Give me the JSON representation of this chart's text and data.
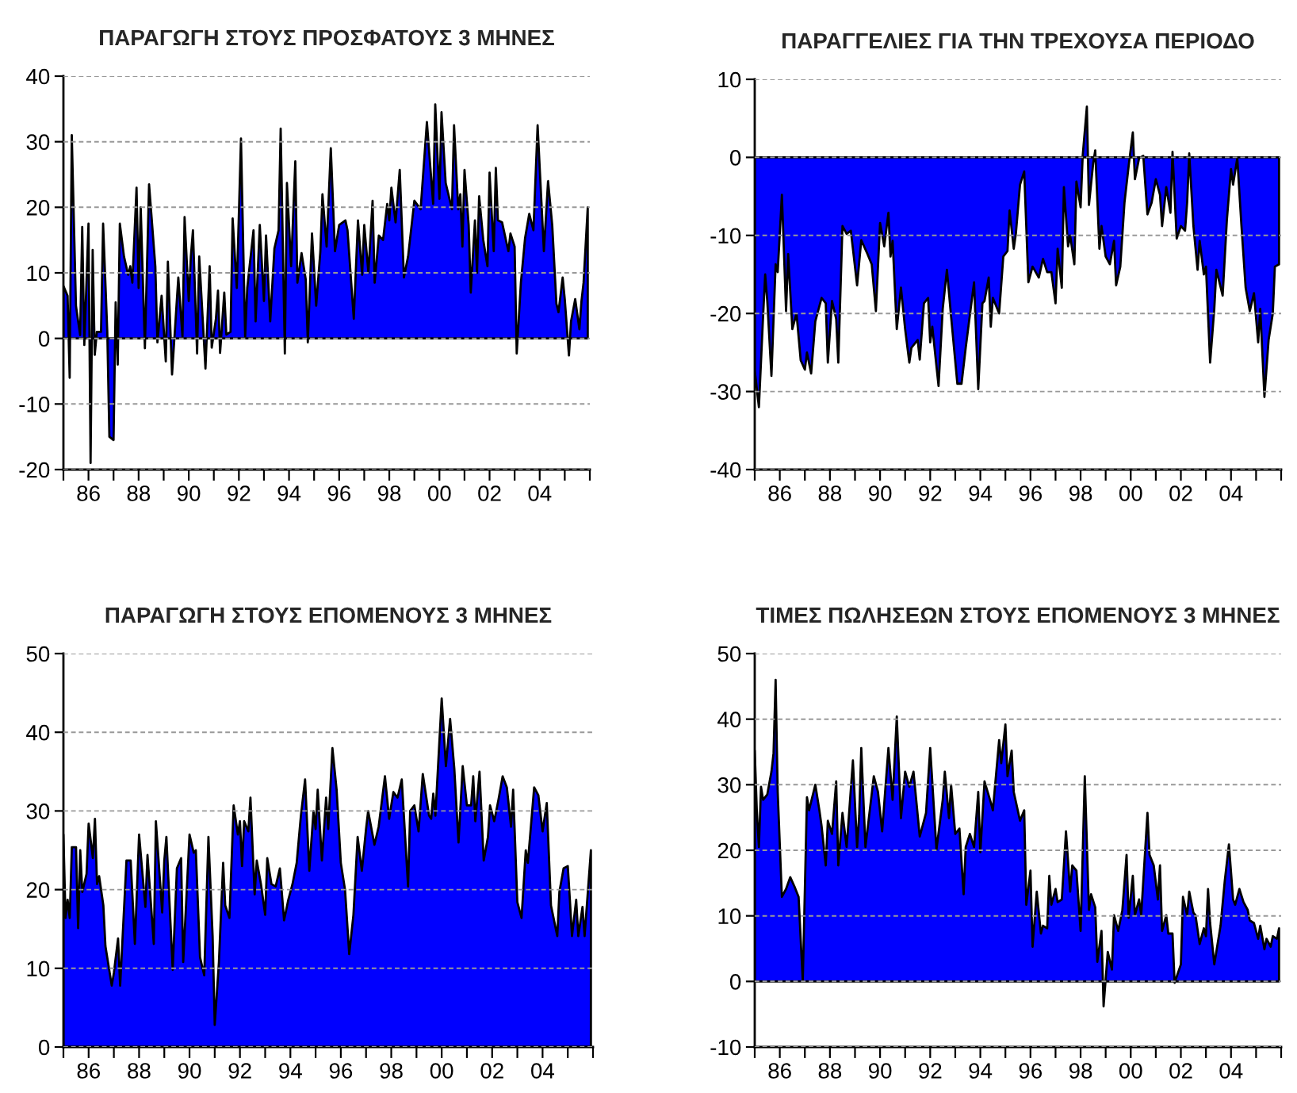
{
  "chart_data": [
    {
      "type": "area",
      "title": "ΠΑΡΑΓΩΓΗ ΣΤΟΥΣ ΠΡΟΣΦΑΤΟΥΣ 3 ΜΗΝΕΣ",
      "grid": "y",
      "xlim": [
        "1985",
        "2006"
      ],
      "xticks": [
        {
          "value": "1985",
          "label": null
        },
        {
          "value": "1986",
          "label": "86"
        },
        {
          "value": "1987",
          "label": null
        },
        {
          "value": "1988",
          "label": "88"
        },
        {
          "value": "1989",
          "label": null
        },
        {
          "value": "1990",
          "label": "90"
        },
        {
          "value": "1991",
          "label": null
        },
        {
          "value": "1992",
          "label": "92"
        },
        {
          "value": "1993",
          "label": null
        },
        {
          "value": "1994",
          "label": "94"
        },
        {
          "value": "1995",
          "label": null
        },
        {
          "value": "1996",
          "label": "96"
        },
        {
          "value": "1997",
          "label": null
        },
        {
          "value": "1998",
          "label": "98"
        },
        {
          "value": "1999",
          "label": null
        },
        {
          "value": "2000",
          "label": "00"
        },
        {
          "value": "2001",
          "label": null
        },
        {
          "value": "2002",
          "label": "02"
        },
        {
          "value": "2003",
          "label": null
        },
        {
          "value": "2004",
          "label": "04"
        },
        {
          "value": "2005",
          "label": null
        },
        {
          "value": "2006",
          "label": null
        }
      ],
      "ylim": [
        -20,
        40
      ],
      "yticks": [
        -20,
        -10,
        0,
        10,
        20,
        30,
        40
      ],
      "x": [
        "1985-01",
        "1985-03",
        "1985-04",
        "1985-05",
        "1985-07",
        "1985-09",
        "1985-10",
        "1985-11",
        "1986-01",
        "1986-02",
        "1986-03",
        "1986-04",
        "1986-05",
        "1986-07",
        "1986-08",
        "1986-10",
        "1986-11",
        "1987-01",
        "1987-02",
        "1987-03",
        "1987-04",
        "1987-06",
        "1987-08",
        "1987-09",
        "1987-10",
        "1987-12",
        "1988-01",
        "1988-02",
        "1988-04",
        "1988-06",
        "1988-09",
        "1988-10",
        "1988-12",
        "1989-02",
        "1989-03",
        "1989-05",
        "1989-08",
        "1989-10",
        "1989-11",
        "1990-01",
        "1990-02",
        "1990-03",
        "1990-05",
        "1990-06",
        "1990-09",
        "1990-11",
        "1990-12",
        "1991-02",
        "1991-03",
        "1991-04",
        "1991-06",
        "1991-07",
        "1991-09",
        "1991-10",
        "1991-12",
        "1992-02",
        "1992-04",
        "1992-05",
        "1992-08",
        "1992-09",
        "1992-11",
        "1993-01",
        "1993-02",
        "1993-04",
        "1993-06",
        "1993-08",
        "1993-09",
        "1993-11",
        "1993-12",
        "1994-02",
        "1994-04",
        "1994-05",
        "1994-07",
        "1994-09",
        "1994-10",
        "1994-12",
        "1995-02",
        "1995-04",
        "1995-05",
        "1995-07",
        "1995-09",
        "1995-11",
        "1996-01",
        "1996-04",
        "1996-05",
        "1996-08",
        "1996-10",
        "1996-12",
        "1997-01",
        "1997-03",
        "1997-05",
        "1997-06",
        "1997-08",
        "1997-10",
        "1997-12",
        "1998-01",
        "1998-02",
        "1998-04",
        "1998-06",
        "1998-08",
        "1998-10",
        "1999-01",
        "1999-04",
        "1999-07",
        "1999-10",
        "1999-11",
        "2000-01",
        "2000-02",
        "2000-04",
        "2000-07",
        "2000-08",
        "2000-10",
        "2000-11",
        "2000-12",
        "2001-01",
        "2001-03",
        "2001-04",
        "2001-06",
        "2001-07",
        "2001-08",
        "2001-10",
        "2001-12",
        "2002-01",
        "2002-03",
        "2002-04",
        "2002-05",
        "2002-07",
        "2002-10",
        "2002-11",
        "2003-01",
        "2003-02",
        "2003-04",
        "2003-06",
        "2003-08",
        "2003-10",
        "2003-12",
        "2004-03",
        "2004-05",
        "2004-07",
        "2004-09",
        "2004-10",
        "2004-12",
        "2005-01",
        "2005-03",
        "2005-04",
        "2005-06",
        "2005-08",
        "2005-09",
        "2005-10",
        "2005-12"
      ],
      "series": [
        {
          "color": "#0000ff",
          "values": [
            8,
            6.5,
            -6,
            31,
            5,
            0.5,
            17,
            -1,
            17.5,
            -19,
            13.5,
            -2.5,
            1,
            1,
            17.5,
            1,
            -15,
            -15.5,
            5.5,
            -4,
            17.5,
            12.5,
            9.7,
            11,
            8.5,
            23,
            7.7,
            20,
            -1.5,
            23.5,
            11,
            -0.6,
            6.5,
            -3.5,
            11.7,
            -5.5,
            9.3,
            0.2,
            18.5,
            5.7,
            12.5,
            16.5,
            -2.3,
            12.5,
            -4.6,
            11,
            -1.4,
            3,
            7.3,
            -2.2,
            7,
            0.6,
            1,
            18.3,
            7.7,
            30.5,
            0.2,
            7.7,
            16.5,
            2.6,
            17.3,
            5.7,
            15.7,
            2.6,
            13.7,
            16.5,
            32,
            -2.3,
            23.7,
            11,
            27,
            8.5,
            13,
            9,
            -0.6,
            16,
            5,
            13.3,
            22,
            14,
            29,
            13.3,
            17.3,
            18,
            16.5,
            3,
            18,
            9.7,
            17.3,
            10,
            21,
            8.5,
            15.7,
            15,
            20.5,
            18,
            23,
            17.7,
            25.7,
            9.3,
            12.5,
            21,
            19.7,
            33,
            20.5,
            35.7,
            21.3,
            34.5,
            23.7,
            19.7,
            32.5,
            19.7,
            22,
            14,
            25.7,
            17.3,
            7,
            18,
            10,
            21.7,
            15,
            11,
            25.3,
            13.3,
            26,
            18,
            17.7,
            13.3,
            16,
            14,
            -2.3,
            8.5,
            15.3,
            19,
            16.5,
            32.5,
            13.3,
            24,
            17.3,
            5.3,
            4,
            9.3,
            6,
            -2.6,
            2.6,
            6,
            1.4,
            5.7,
            8.5,
            20
          ]
        }
      ]
    },
    {
      "type": "area",
      "title": "ΠΑΡΑΓΓΕΛΙΕΣ ΓΙΑ ΤΗΝ ΤΡΕΧΟΥΣΑ ΠΕΡΙΟΔΟ",
      "grid": "y",
      "xlim": [
        "1985",
        "2006"
      ],
      "xticks": [
        {
          "value": "1985",
          "label": null
        },
        {
          "value": "1986",
          "label": "86"
        },
        {
          "value": "1987",
          "label": null
        },
        {
          "value": "1988",
          "label": "88"
        },
        {
          "value": "1989",
          "label": null
        },
        {
          "value": "1990",
          "label": "90"
        },
        {
          "value": "1991",
          "label": null
        },
        {
          "value": "1992",
          "label": "92"
        },
        {
          "value": "1993",
          "label": null
        },
        {
          "value": "1994",
          "label": "94"
        },
        {
          "value": "1995",
          "label": null
        },
        {
          "value": "1996",
          "label": "96"
        },
        {
          "value": "1997",
          "label": null
        },
        {
          "value": "1998",
          "label": "98"
        },
        {
          "value": "1999",
          "label": null
        },
        {
          "value": "2000",
          "label": "00"
        },
        {
          "value": "2001",
          "label": null
        },
        {
          "value": "2002",
          "label": "02"
        },
        {
          "value": "2003",
          "label": null
        },
        {
          "value": "2004",
          "label": "04"
        },
        {
          "value": "2005",
          "label": null
        },
        {
          "value": "2006",
          "label": null
        }
      ],
      "ylim": [
        -40,
        10
      ],
      "yticks": [
        -40,
        -30,
        -20,
        -10,
        0,
        10
      ],
      "x": [
        "1985-01",
        "1985-03",
        "1985-05",
        "1985-06",
        "1985-07",
        "1985-09",
        "1985-11",
        "1985-12",
        "1986-02",
        "1986-04",
        "1986-05",
        "1986-07",
        "1986-09",
        "1986-11",
        "1987-01",
        "1987-02",
        "1987-04",
        "1987-06",
        "1987-09",
        "1987-11",
        "1987-12",
        "1988-02",
        "1988-04",
        "1988-05",
        "1988-07",
        "1988-09",
        "1988-11",
        "1988-12",
        "1989-02",
        "1989-04",
        "1989-07",
        "1989-09",
        "1989-11",
        "1990-01",
        "1990-03",
        "1990-05",
        "1990-06",
        "1990-07",
        "1990-09",
        "1990-11",
        "1991-01",
        "1991-03",
        "1991-04",
        "1991-07",
        "1991-08",
        "1991-10",
        "1991-12",
        "1992-01",
        "1992-02",
        "1992-05",
        "1992-07",
        "1992-09",
        "1992-11",
        "1993-02",
        "1993-04",
        "1993-06",
        "1993-10",
        "1993-12",
        "1994-02",
        "1994-03",
        "1994-05",
        "1994-06",
        "1994-07",
        "1994-10",
        "1994-12",
        "1995-02",
        "1995-03",
        "1995-05",
        "1995-06",
        "1995-08",
        "1995-10",
        "1995-12",
        "1996-02",
        "1996-05",
        "1996-07",
        "1996-09",
        "1996-11",
        "1997-01",
        "1997-02",
        "1997-04",
        "1997-05",
        "1997-07",
        "1997-08",
        "1997-10",
        "1997-11",
        "1998-01",
        "1998-02",
        "1998-04",
        "1998-05",
        "1998-07",
        "1998-08",
        "1998-10",
        "1998-11",
        "1999-01",
        "1999-03",
        "1999-05",
        "1999-06",
        "1999-08",
        "1999-10",
        "1999-12",
        "2000-02",
        "2000-03",
        "2000-05",
        "2000-07",
        "2000-09",
        "2000-11",
        "2001-01",
        "2001-03",
        "2001-04",
        "2001-06",
        "2001-08",
        "2001-09",
        "2001-11",
        "2002-01",
        "2002-03",
        "2002-04",
        "2002-05",
        "2002-07",
        "2002-09",
        "2002-10",
        "2002-12",
        "2003-01",
        "2003-03",
        "2003-05",
        "2003-06",
        "2003-09",
        "2003-11",
        "2004-01",
        "2004-02",
        "2004-04",
        "2004-06",
        "2004-08",
        "2004-10",
        "2004-12",
        "2005-02",
        "2005-03",
        "2005-05",
        "2005-07",
        "2005-09",
        "2005-10",
        "2005-12"
      ],
      "series": [
        {
          "color": "#0000ff",
          "values": [
            -27.3,
            -32,
            -20.4,
            -15,
            -18.4,
            -28,
            -13.7,
            -14.7,
            -4.8,
            -19.7,
            -12.4,
            -22,
            -20,
            -26,
            -27.2,
            -25,
            -27.7,
            -21,
            -18,
            -18.7,
            -26.3,
            -18.4,
            -20.7,
            -26.3,
            -8.8,
            -9.8,
            -9.4,
            -11.7,
            -16.4,
            -10.6,
            -12.4,
            -13.7,
            -19.7,
            -8.4,
            -11.4,
            -7.1,
            -12.7,
            -10.7,
            -22,
            -16.7,
            -22,
            -26.3,
            -24.4,
            -23.4,
            -25.9,
            -18.7,
            -18,
            -23.7,
            -21.7,
            -29.3,
            -19.4,
            -14.4,
            -20.4,
            -29,
            -29,
            -24.4,
            -16,
            -29.7,
            -18.7,
            -18.4,
            -15.4,
            -21.7,
            -18,
            -20,
            -12.7,
            -12,
            -6.8,
            -11.7,
            -9.8,
            -3.5,
            -1.8,
            -16,
            -14,
            -15.4,
            -13,
            -14.7,
            -14.7,
            -18.7,
            -11.7,
            -16.7,
            -3.8,
            -11.4,
            -10,
            -13.7,
            -3.1,
            -6.4,
            0.2,
            6.5,
            -6.1,
            -0.8,
            0.9,
            -11.7,
            -8.8,
            -12.7,
            -13.7,
            -10.7,
            -16.4,
            -14,
            -5.8,
            -1.1,
            3.2,
            -2.8,
            -0.1,
            0.2,
            -7.3,
            -5.8,
            -2.8,
            -4.8,
            -8.8,
            -3.8,
            -7.1,
            0.7,
            -10.4,
            -8.8,
            -9.4,
            -5.8,
            0.5,
            -8.8,
            -14.4,
            -10.7,
            -15,
            -14,
            -26.3,
            -19.4,
            -14.4,
            -17.7,
            -8.1,
            -1.5,
            -3.5,
            -0.1,
            -8.8,
            -16.7,
            -19.7,
            -17.4,
            -23.7,
            -19.4,
            -30.7,
            -23.4,
            -20,
            -14,
            -13.7
          ]
        }
      ]
    },
    {
      "type": "area",
      "title": "ΠΑΡΑΓΩΓΗ ΣΤΟΥΣ ΕΠΟΜΕΝΟΥΣ 3 ΜΗΝΕΣ",
      "grid": "y",
      "xlim": [
        "1985",
        "2006"
      ],
      "xticks": [
        {
          "value": "1985",
          "label": null
        },
        {
          "value": "1986",
          "label": "86"
        },
        {
          "value": "1987",
          "label": null
        },
        {
          "value": "1988",
          "label": "88"
        },
        {
          "value": "1989",
          "label": null
        },
        {
          "value": "1990",
          "label": "90"
        },
        {
          "value": "1991",
          "label": null
        },
        {
          "value": "1992",
          "label": "92"
        },
        {
          "value": "1993",
          "label": null
        },
        {
          "value": "1994",
          "label": "94"
        },
        {
          "value": "1995",
          "label": null
        },
        {
          "value": "1996",
          "label": "96"
        },
        {
          "value": "1997",
          "label": null
        },
        {
          "value": "1998",
          "label": "98"
        },
        {
          "value": "1999",
          "label": null
        },
        {
          "value": "2000",
          "label": "00"
        },
        {
          "value": "2001",
          "label": null
        },
        {
          "value": "2002",
          "label": "02"
        },
        {
          "value": "2003",
          "label": null
        },
        {
          "value": "2004",
          "label": "04"
        },
        {
          "value": "2005",
          "label": null
        },
        {
          "value": "2006",
          "label": null
        }
      ],
      "ylim": [
        0,
        50
      ],
      "yticks": [
        0,
        10,
        20,
        30,
        40,
        50
      ],
      "x": [
        "1985-01",
        "1985-02",
        "1985-03",
        "1985-04",
        "1985-05",
        "1985-07",
        "1985-08",
        "1985-09",
        "1985-10",
        "1985-12",
        "1986-01",
        "1986-03",
        "1986-04",
        "1986-05",
        "1986-06",
        "1986-08",
        "1986-09",
        "1986-12",
        "1987-01",
        "1987-03",
        "1987-04",
        "1987-07",
        "1987-09",
        "1987-11",
        "1988-01",
        "1988-04",
        "1988-05",
        "1988-08",
        "1988-09",
        "1988-12",
        "1989-01",
        "1989-02",
        "1989-05",
        "1989-07",
        "1989-09",
        "1989-10",
        "1990-01",
        "1990-03",
        "1990-04",
        "1990-06",
        "1990-08",
        "1990-10",
        "1990-12",
        "1991-01",
        "1991-03",
        "1991-05",
        "1991-06",
        "1991-08",
        "1991-10",
        "1991-12",
        "1992-01",
        "1992-02",
        "1992-03",
        "1992-05",
        "1992-06",
        "1992-08",
        "1992-09",
        "1992-11",
        "1993-01",
        "1993-02",
        "1993-04",
        "1993-06",
        "1993-08",
        "1993-10",
        "1993-12",
        "1994-02",
        "1994-04",
        "1994-06",
        "1994-08",
        "1994-10",
        "1994-12",
        "1995-01",
        "1995-02",
        "1995-04",
        "1995-06",
        "1995-07",
        "1995-09",
        "1995-11",
        "1996-01",
        "1996-03",
        "1996-05",
        "1996-07",
        "1996-09",
        "1996-11",
        "1997-01",
        "1997-02",
        "1997-05",
        "1997-07",
        "1997-10",
        "1997-12",
        "1998-02",
        "1998-04",
        "1998-06",
        "1998-09",
        "1998-10",
        "1998-12",
        "1999-02",
        "1999-04",
        "1999-07",
        "1999-08",
        "1999-09",
        "1999-10",
        "2000-01",
        "2000-03",
        "2000-05",
        "2000-07",
        "2000-09",
        "2000-11",
        "2001-01",
        "2001-03",
        "2001-04",
        "2001-05",
        "2001-07",
        "2001-09",
        "2001-11",
        "2001-12",
        "2002-02",
        "2002-04",
        "2002-06",
        "2002-08",
        "2002-10",
        "2002-11",
        "2003-01",
        "2003-03",
        "2003-05",
        "2003-06",
        "2003-09",
        "2003-11",
        "2004-01",
        "2004-03",
        "2004-05",
        "2004-08",
        "2004-09",
        "2004-11",
        "2005-01",
        "2005-02",
        "2005-03",
        "2005-05",
        "2005-06",
        "2005-08",
        "2005-09",
        "2005-12"
      ],
      "series": [
        {
          "color": "#0000ff",
          "values": [
            27,
            16.4,
            18.7,
            16.4,
            25.4,
            25.4,
            15.1,
            25,
            19.7,
            22,
            28.4,
            24,
            29,
            20.7,
            21.7,
            18,
            12.8,
            7.8,
            9.4,
            13.8,
            7.8,
            23.7,
            23.7,
            13.1,
            27,
            17.8,
            24.4,
            13.1,
            28.7,
            17.1,
            23.7,
            26.7,
            9.8,
            22.7,
            24,
            10.8,
            27,
            24.7,
            25,
            11.4,
            9.1,
            26.7,
            14.1,
            2.8,
            10.8,
            23.4,
            18,
            16.4,
            30.7,
            27,
            28.7,
            23,
            28.7,
            27.4,
            31.7,
            19.4,
            23.7,
            20.7,
            16.8,
            24,
            20.7,
            20.4,
            22.7,
            16.1,
            18.7,
            20.7,
            23.4,
            29.4,
            34,
            22.4,
            30,
            27.7,
            32.7,
            23.7,
            31.7,
            27.7,
            38,
            32.7,
            23.4,
            20,
            11.8,
            16.8,
            26.7,
            22.4,
            27.7,
            30,
            25.7,
            28,
            34.4,
            29,
            32.4,
            31.7,
            34,
            20.4,
            30,
            30.7,
            27.4,
            34.7,
            29.4,
            29,
            32.2,
            29.4,
            44.3,
            35.7,
            41.7,
            35.4,
            26,
            35.7,
            30.7,
            30.7,
            34.4,
            28.7,
            35,
            23.7,
            26.7,
            30.7,
            28.7,
            31.4,
            34.4,
            33,
            28,
            32.7,
            18.4,
            16.4,
            25,
            23.4,
            33,
            32,
            27.4,
            31,
            18,
            14.1,
            19.7,
            22.7,
            23,
            18.7,
            14.1,
            18.7,
            14.1,
            17.8,
            14.1,
            25
          ]
        }
      ]
    },
    {
      "type": "area",
      "title": "ΤΙΜΕΣ ΠΩΛΗΣΕΩΝ ΣΤΟΥΣ ΕΠΟΜΕΝΟΥΣ 3 ΜΗΝΕΣ",
      "grid": "y",
      "xlim": [
        "1985",
        "2006"
      ],
      "xticks": [
        {
          "value": "1985",
          "label": null
        },
        {
          "value": "1986",
          "label": "86"
        },
        {
          "value": "1987",
          "label": null
        },
        {
          "value": "1988",
          "label": "88"
        },
        {
          "value": "1989",
          "label": null
        },
        {
          "value": "1990",
          "label": "90"
        },
        {
          "value": "1991",
          "label": null
        },
        {
          "value": "1992",
          "label": "92"
        },
        {
          "value": "1993",
          "label": null
        },
        {
          "value": "1994",
          "label": "94"
        },
        {
          "value": "1995",
          "label": null
        },
        {
          "value": "1996",
          "label": "96"
        },
        {
          "value": "1997",
          "label": null
        },
        {
          "value": "1998",
          "label": "98"
        },
        {
          "value": "1999",
          "label": null
        },
        {
          "value": "2000",
          "label": "00"
        },
        {
          "value": "2001",
          "label": null
        },
        {
          "value": "2002",
          "label": "02"
        },
        {
          "value": "2003",
          "label": null
        },
        {
          "value": "2004",
          "label": "04"
        },
        {
          "value": "2005",
          "label": null
        },
        {
          "value": "2006",
          "label": null
        }
      ],
      "ylim": [
        -10,
        50
      ],
      "yticks": [
        -10,
        0,
        10,
        20,
        30,
        40,
        50
      ],
      "x": [
        "1985-01",
        "1985-02",
        "1985-03",
        "1985-04",
        "1985-05",
        "1985-07",
        "1985-09",
        "1985-10",
        "1985-11",
        "1985-12",
        "1986-02",
        "1986-04",
        "1986-06",
        "1986-08",
        "1986-10",
        "1986-12",
        "1987-02",
        "1987-03",
        "1987-06",
        "1987-08",
        "1987-09",
        "1987-11",
        "1987-12",
        "1988-02",
        "1988-04",
        "1988-05",
        "1988-07",
        "1988-09",
        "1988-12",
        "1989-02",
        "1989-03",
        "1989-04",
        "1989-06",
        "1989-10",
        "1989-12",
        "1990-02",
        "1990-05",
        "1990-07",
        "1990-09",
        "1990-11",
        "1991-01",
        "1991-03",
        "1991-05",
        "1991-08",
        "1991-11",
        "1992-01",
        "1992-04",
        "1992-07",
        "1992-08",
        "1992-10",
        "1992-11",
        "1993-01",
        "1993-03",
        "1993-05",
        "1993-06",
        "1993-08",
        "1993-10",
        "1993-12",
        "1994-01",
        "1994-03",
        "1994-06",
        "1994-07",
        "1994-10",
        "1994-11",
        "1995-01",
        "1995-02",
        "1995-04",
        "1995-05",
        "1995-08",
        "1995-10",
        "1995-11",
        "1996-01",
        "1996-02",
        "1996-04",
        "1996-06",
        "1996-07",
        "1996-09",
        "1996-10",
        "1996-11",
        "1997-01",
        "1997-02",
        "1997-04",
        "1997-06",
        "1997-08",
        "1997-09",
        "1997-11",
        "1998-01",
        "1998-03",
        "1998-05",
        "1998-06",
        "1998-08",
        "1998-09",
        "1998-11",
        "1998-12",
        "1999-02",
        "1999-04",
        "1999-05",
        "1999-07",
        "1999-09",
        "1999-11",
        "1999-12",
        "2000-02",
        "2000-03",
        "2000-05",
        "2000-06",
        "2000-09",
        "2000-10",
        "2000-12",
        "2001-02",
        "2001-03",
        "2001-04",
        "2001-06",
        "2001-07",
        "2001-09",
        "2001-10",
        "2002-01",
        "2002-02",
        "2002-04",
        "2002-05",
        "2002-07",
        "2002-08",
        "2002-10",
        "2002-12",
        "2003-01",
        "2003-02",
        "2003-03",
        "2003-05",
        "2003-08",
        "2003-10",
        "2003-12",
        "2004-02",
        "2004-03",
        "2004-05",
        "2004-07",
        "2004-09",
        "2004-10",
        "2004-12",
        "2005-02",
        "2005-03",
        "2005-05",
        "2005-06",
        "2005-08",
        "2005-09",
        "2005-11",
        "2005-12"
      ],
      "series": [
        {
          "color": "#0000ff",
          "values": [
            35.2,
            26,
            20.5,
            29.7,
            27.7,
            28.5,
            32,
            34.8,
            46,
            28.9,
            12.9,
            14.1,
            15.9,
            14.5,
            12.9,
            0,
            28.1,
            26.1,
            30,
            26,
            23.7,
            17.7,
            24.5,
            22.5,
            30.5,
            17.7,
            25.7,
            20.5,
            33.7,
            20.5,
            25.3,
            35.6,
            20.5,
            31.3,
            28.9,
            22.9,
            35.6,
            27.7,
            40.4,
            24.9,
            32,
            29.7,
            32,
            22.1,
            25.7,
            35.6,
            20.1,
            27.7,
            32,
            24.9,
            30,
            22.5,
            23.3,
            13.3,
            20.5,
            22.5,
            20.5,
            28.9,
            19.7,
            30.5,
            27.3,
            26.1,
            36.8,
            33.3,
            39.2,
            31.3,
            35.2,
            28.9,
            24.5,
            26.1,
            11.7,
            16.9,
            5.3,
            13.7,
            7.3,
            8.5,
            8.1,
            16.1,
            11.7,
            14.1,
            12.1,
            12.5,
            22.9,
            13.7,
            17.7,
            16.9,
            7.7,
            31.3,
            10.9,
            13.3,
            11.3,
            3,
            7.7,
            -3.8,
            4.5,
            1.8,
            10.1,
            7.7,
            10.9,
            19.3,
            9.7,
            16.1,
            10.1,
            12.5,
            10.1,
            25.7,
            19.3,
            17.7,
            12.5,
            17.7,
            7.7,
            10.1,
            7.3,
            7.3,
            -0.2,
            2.6,
            12.9,
            10.1,
            13.7,
            10.5,
            10.1,
            5.7,
            8.1,
            6.9,
            14.1,
            8.9,
            2.6,
            8.5,
            15.3,
            20.9,
            12.5,
            11.7,
            14.1,
            12.1,
            10.9,
            9.3,
            8.9,
            6.5,
            8.5,
            4.9,
            6.5,
            5.3,
            6.9,
            6.5,
            8.1
          ]
        }
      ]
    }
  ]
}
